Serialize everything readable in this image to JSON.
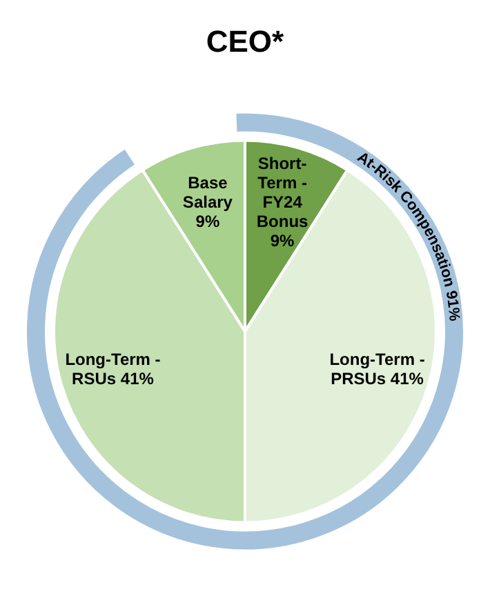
{
  "chart_data": {
    "type": "pie",
    "title": "CEO*",
    "categories": [
      "Short-Term - FY24 Bonus",
      "Long-Term - PRSUs",
      "Long-Term - RSUs",
      "Base Salary"
    ],
    "values": [
      9,
      41,
      41,
      9
    ],
    "value_labels": [
      "9%",
      "41%",
      "41%",
      "9%"
    ],
    "colors": [
      "#70a047",
      "#e2efd9",
      "#c5e0b3",
      "#a9d18e"
    ],
    "annotations": [
      "At-Risk Compensation 91%"
    ],
    "legend": false
  }
}
